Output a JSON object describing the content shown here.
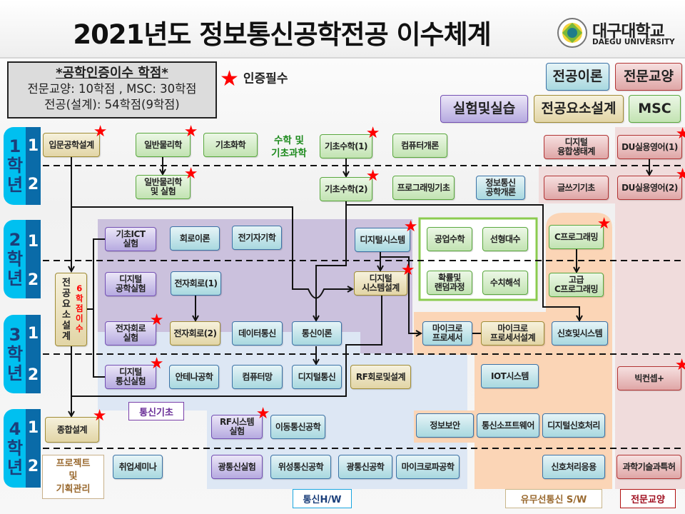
{
  "title": "2021년도 정보통신공학전공 이수체계",
  "logo": {
    "name_kr": "대구대학교",
    "name_en": "DAEGU UNIVERSITY"
  },
  "info_box": {
    "heading": "*공학인증이수 학점*",
    "line1": "전문교양: 10학점 , MSC: 30학점",
    "line2": "전공(설계): 54학점(9학점)"
  },
  "required_legend": {
    "icon": "star-icon",
    "label": "인증필수",
    "color": "#ff0000"
  },
  "legend": {
    "major": "전공이론",
    "liberal": "전문교양",
    "lab": "실험및실습",
    "design": "전공요소설계",
    "msc": "MSC"
  },
  "colors": {
    "major": "#a8d8df",
    "liberal": "#dfa6a6",
    "lab": "#b6aae0",
    "design": "#e2d5a6",
    "msc": "#c2e3b2",
    "star": "#ff0000"
  },
  "years": [
    {
      "label": "1\n학\n년",
      "sem1": "1",
      "sem2": "2"
    },
    {
      "label": "2\n학\n년",
      "sem1": "1",
      "sem2": "2"
    },
    {
      "label": "3\n학\n년",
      "sem1": "1",
      "sem2": "2"
    },
    {
      "label": "4\n학\n년",
      "sem1": "1",
      "sem2": "2"
    }
  ],
  "labels": {
    "math_science": "수학 및\n기초과학",
    "comm_basics": "통신기초",
    "comm_hw": "통신H/W",
    "wired_wireless_sw": "유무선통신 S/W",
    "liberal_arts": "전문교양",
    "project_mgmt": "프로젝트\n및\n기획관리",
    "design_credits": "6\n학\n점\n이\n수"
  },
  "courses": {
    "intro_design": {
      "name": "입문공학설계",
      "type": "design",
      "required": true
    },
    "physics": {
      "name": "일반물리학",
      "type": "msc",
      "required": true
    },
    "chemistry": {
      "name": "기초화학",
      "type": "msc",
      "required": false
    },
    "math1": {
      "name": "기초수학(1)",
      "type": "msc",
      "required": true
    },
    "computer_intro": {
      "name": "컴퓨터개론",
      "type": "msc",
      "required": false
    },
    "digital_ecosystem": {
      "name": "디지털\n융합생태계",
      "type": "liberal",
      "required": false
    },
    "english1": {
      "name": "DU실용영어(1)",
      "type": "liberal",
      "required": true
    },
    "physics_lab": {
      "name": "일반물리학\n및 실험",
      "type": "msc",
      "required": true
    },
    "math2": {
      "name": "기초수학(2)",
      "type": "msc",
      "required": true
    },
    "programming_basics": {
      "name": "프로그래밍기초",
      "type": "msc",
      "required": false
    },
    "ict_intro": {
      "name": "정보통신\n공학개론",
      "type": "major",
      "required": false
    },
    "writing": {
      "name": "글쓰기기초",
      "type": "liberal",
      "required": false
    },
    "english2": {
      "name": "DU실용영어(2)",
      "type": "liberal",
      "required": true
    },
    "ict_lab": {
      "name": "기초ICT\n실험",
      "type": "lab",
      "required": false
    },
    "circuit_theory": {
      "name": "회로이론",
      "type": "major",
      "required": false
    },
    "electromagnetics": {
      "name": "전기자기학",
      "type": "major",
      "required": false
    },
    "digital_system": {
      "name": "디지털시스템",
      "type": "major",
      "required": true
    },
    "eng_math": {
      "name": "공업수학",
      "type": "msc",
      "required": false
    },
    "linear_algebra": {
      "name": "선형대수",
      "type": "msc",
      "required": false
    },
    "c_programming": {
      "name": "C프로그래밍",
      "type": "msc",
      "required": true
    },
    "digital_eng_lab": {
      "name": "디지털\n공학실험",
      "type": "lab",
      "required": false
    },
    "electronic_circuit1": {
      "name": "전자회로(1)",
      "type": "major",
      "required": false
    },
    "digital_system_design": {
      "name": "디지털\n시스템설계",
      "type": "design",
      "required": true
    },
    "probability": {
      "name": "확률및\n랜덤과정",
      "type": "msc",
      "required": false
    },
    "numerical_analysis": {
      "name": "수치해석",
      "type": "msc",
      "required": false
    },
    "advanced_c": {
      "name": "고급\nC프로그래밍",
      "type": "msc",
      "required": false
    },
    "major_design": {
      "name": "전\n공\n요\n소\n설\n계",
      "type": "design",
      "required": false
    },
    "electronic_circuit_lab": {
      "name": "전자회로\n실험",
      "type": "lab",
      "required": true
    },
    "electronic_circuit2": {
      "name": "전자회로(2)",
      "type": "design",
      "required": false
    },
    "data_comm": {
      "name": "데이터통신",
      "type": "major",
      "required": false
    },
    "comm_theory": {
      "name": "통신이론",
      "type": "major",
      "required": false
    },
    "microprocessor": {
      "name": "마이크로\n프로세서",
      "type": "major",
      "required": false
    },
    "microprocessor_design": {
      "name": "마이크로\n프로세서설계",
      "type": "design",
      "required": false
    },
    "signals_systems": {
      "name": "신호및시스템",
      "type": "major",
      "required": false
    },
    "digital_comm_lab": {
      "name": "디지털\n통신실험",
      "type": "lab",
      "required": true
    },
    "antenna": {
      "name": "안테나공학",
      "type": "major",
      "required": false
    },
    "computer_network": {
      "name": "컴퓨터망",
      "type": "major",
      "required": false
    },
    "digital_comm": {
      "name": "디지털통신",
      "type": "major",
      "required": false
    },
    "rf_circuit_design": {
      "name": "RF회로및설계",
      "type": "design",
      "required": false
    },
    "iot_system": {
      "name": "IOT시스템",
      "type": "major",
      "required": false
    },
    "big_concept": {
      "name": "빅컨셉+",
      "type": "liberal",
      "required": true
    },
    "capstone": {
      "name": "종합설계",
      "type": "design",
      "required": true
    },
    "rf_system_lab": {
      "name": "RF시스템\n실험",
      "type": "lab",
      "required": true
    },
    "mobile_comm": {
      "name": "이동통신공학",
      "type": "major",
      "required": false
    },
    "info_security": {
      "name": "정보보안",
      "type": "major",
      "required": false
    },
    "comm_software": {
      "name": "통신소프트웨어",
      "type": "major",
      "required": false
    },
    "dsp": {
      "name": "디지털신호처리",
      "type": "major",
      "required": false
    },
    "career_seminar": {
      "name": "취업세미나",
      "type": "major",
      "required": false
    },
    "optical_lab": {
      "name": "광통신실험",
      "type": "lab",
      "required": false
    },
    "satellite_comm": {
      "name": "위성통신공학",
      "type": "major",
      "required": false
    },
    "optical_comm": {
      "name": "광통신공학",
      "type": "major",
      "required": false
    },
    "microwave": {
      "name": "마이크로파공학",
      "type": "major",
      "required": false
    },
    "signal_processing_app": {
      "name": "신호처리응용",
      "type": "major",
      "required": false
    },
    "science_patent": {
      "name": "과학기술과특허",
      "type": "liberal",
      "required": false
    }
  }
}
